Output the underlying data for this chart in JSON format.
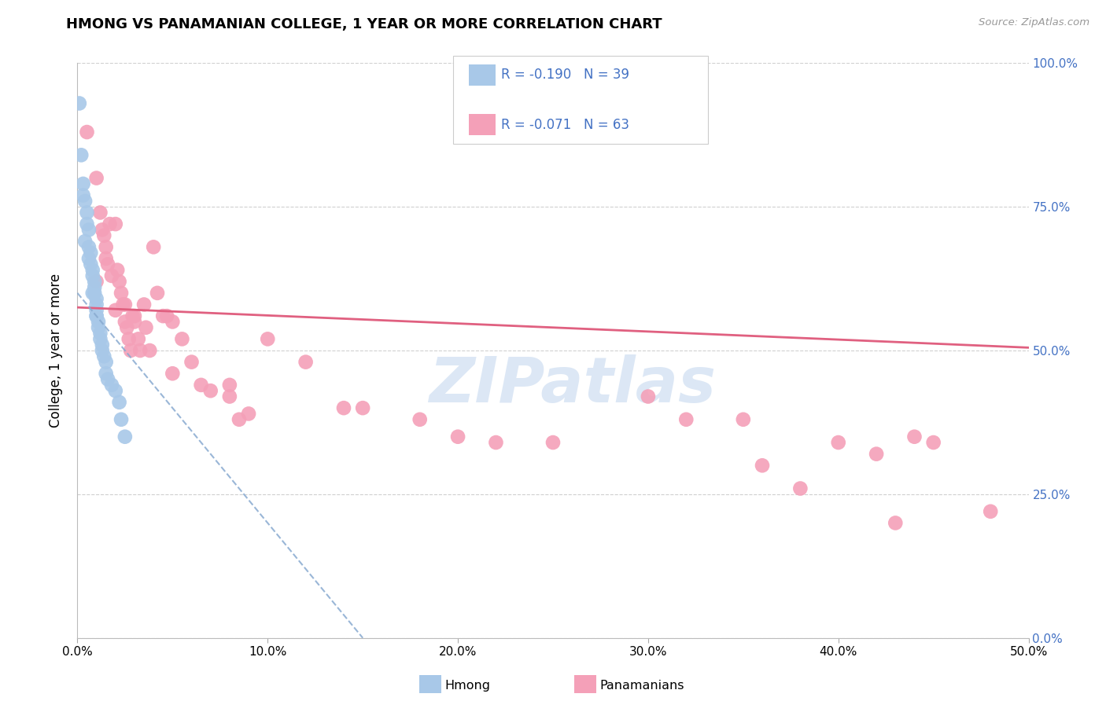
{
  "title": "HMONG VS PANAMANIAN COLLEGE, 1 YEAR OR MORE CORRELATION CHART",
  "source": "Source: ZipAtlas.com",
  "ylabel_label": "College, 1 year or more",
  "legend_label1": "Hmong",
  "legend_label2": "Panamanians",
  "color_hmong": "#a8c8e8",
  "color_panama": "#f4a0b8",
  "color_blue_line": "#5585c5",
  "color_pink_line": "#e06080",
  "color_dashed": "#88aad0",
  "color_right_axis": "#4472c4",
  "watermark_color": "#c5d8ef",
  "hmong_x": [
    0.001,
    0.002,
    0.003,
    0.004,
    0.005,
    0.005,
    0.006,
    0.006,
    0.007,
    0.007,
    0.008,
    0.008,
    0.009,
    0.009,
    0.009,
    0.01,
    0.01,
    0.01,
    0.01,
    0.011,
    0.011,
    0.012,
    0.012,
    0.013,
    0.013,
    0.014,
    0.015,
    0.015,
    0.016,
    0.018,
    0.02,
    0.022,
    0.023,
    0.025,
    0.003,
    0.004,
    0.006,
    0.008,
    0.01
  ],
  "hmong_y": [
    0.93,
    0.84,
    0.79,
    0.76,
    0.74,
    0.72,
    0.71,
    0.68,
    0.67,
    0.65,
    0.64,
    0.63,
    0.62,
    0.61,
    0.6,
    0.59,
    0.58,
    0.57,
    0.56,
    0.55,
    0.54,
    0.53,
    0.52,
    0.51,
    0.5,
    0.49,
    0.48,
    0.46,
    0.45,
    0.44,
    0.43,
    0.41,
    0.38,
    0.35,
    0.77,
    0.69,
    0.66,
    0.6,
    0.56
  ],
  "panama_x": [
    0.005,
    0.01,
    0.012,
    0.013,
    0.014,
    0.015,
    0.016,
    0.017,
    0.018,
    0.02,
    0.021,
    0.022,
    0.023,
    0.024,
    0.025,
    0.026,
    0.027,
    0.028,
    0.029,
    0.03,
    0.032,
    0.033,
    0.035,
    0.036,
    0.038,
    0.04,
    0.042,
    0.045,
    0.047,
    0.05,
    0.055,
    0.06,
    0.065,
    0.07,
    0.08,
    0.085,
    0.09,
    0.1,
    0.12,
    0.14,
    0.15,
    0.18,
    0.2,
    0.22,
    0.25,
    0.3,
    0.35,
    0.38,
    0.4,
    0.42,
    0.43,
    0.45,
    0.48,
    0.32,
    0.36,
    0.44,
    0.01,
    0.015,
    0.02,
    0.025,
    0.03,
    0.05,
    0.08
  ],
  "panama_y": [
    0.88,
    0.8,
    0.74,
    0.71,
    0.7,
    0.68,
    0.65,
    0.72,
    0.63,
    0.57,
    0.64,
    0.62,
    0.6,
    0.58,
    0.55,
    0.54,
    0.52,
    0.5,
    0.56,
    0.55,
    0.52,
    0.5,
    0.58,
    0.54,
    0.5,
    0.68,
    0.6,
    0.56,
    0.56,
    0.55,
    0.52,
    0.48,
    0.44,
    0.43,
    0.44,
    0.38,
    0.39,
    0.52,
    0.48,
    0.4,
    0.4,
    0.38,
    0.35,
    0.34,
    0.34,
    0.42,
    0.38,
    0.26,
    0.34,
    0.32,
    0.2,
    0.34,
    0.22,
    0.38,
    0.3,
    0.35,
    0.62,
    0.66,
    0.72,
    0.58,
    0.56,
    0.46,
    0.42
  ],
  "xlim": [
    0.0,
    0.5
  ],
  "ylim": [
    0.0,
    1.0
  ],
  "xticks": [
    0.0,
    0.1,
    0.2,
    0.3,
    0.4,
    0.5
  ],
  "xticklabels": [
    "0.0%",
    "10.0%",
    "20.0%",
    "30.0%",
    "40.0%",
    "50.0%"
  ],
  "yticks": [
    0.0,
    0.25,
    0.5,
    0.75,
    1.0
  ],
  "yticklabels": [
    "0.0%",
    "25.0%",
    "50.0%",
    "75.0%",
    "100.0%"
  ],
  "panama_trend_x0": 0.0,
  "panama_trend_y0": 0.575,
  "panama_trend_x1": 0.5,
  "panama_trend_y1": 0.505,
  "hmong_trend_x0": 0.0,
  "hmong_trend_y0": 0.6,
  "hmong_trend_x1": 0.15,
  "hmong_trend_y1": 0.0
}
